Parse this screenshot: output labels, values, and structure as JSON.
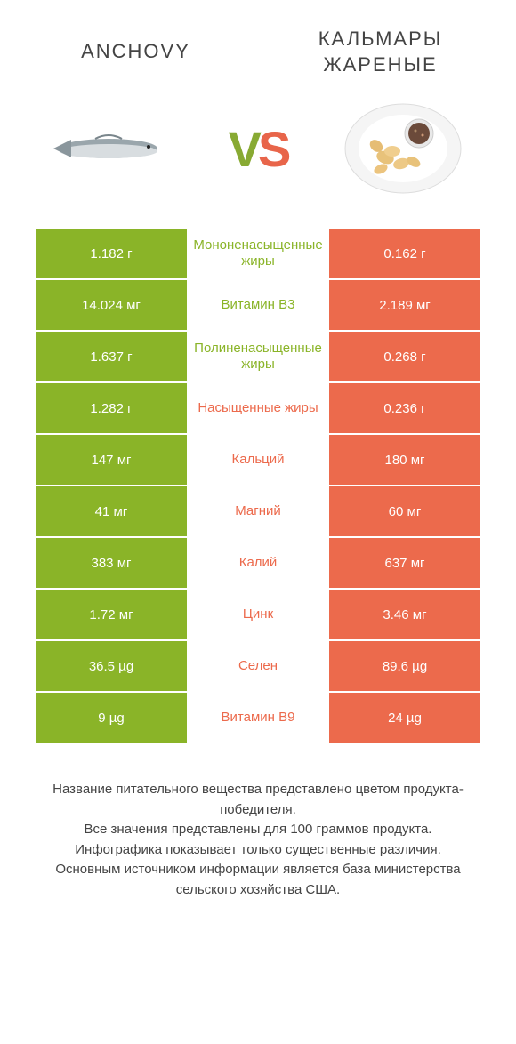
{
  "header": {
    "left_title": "ANCHOVY",
    "right_title": "КАЛЬМАРЫ ЖАРЕНЫЕ",
    "vs_v": "V",
    "vs_s": "S"
  },
  "colors": {
    "green": "#8ab428",
    "orange": "#ec6a4c",
    "bg": "#ffffff",
    "text": "#444444"
  },
  "rows": [
    {
      "left": "1.182 г",
      "mid": "Мононенасыщенные жиры",
      "right": "0.162 г",
      "winner": "left"
    },
    {
      "left": "14.024 мг",
      "mid": "Витамин B3",
      "right": "2.189 мг",
      "winner": "left"
    },
    {
      "left": "1.637 г",
      "mid": "Полиненасыщенные жиры",
      "right": "0.268 г",
      "winner": "left"
    },
    {
      "left": "1.282 г",
      "mid": "Насыщенные жиры",
      "right": "0.236 г",
      "winner": "right"
    },
    {
      "left": "147 мг",
      "mid": "Кальций",
      "right": "180 мг",
      "winner": "right"
    },
    {
      "left": "41 мг",
      "mid": "Магний",
      "right": "60 мг",
      "winner": "right"
    },
    {
      "left": "383 мг",
      "mid": "Калий",
      "right": "637 мг",
      "winner": "right"
    },
    {
      "left": "1.72 мг",
      "mid": "Цинк",
      "right": "3.46 мг",
      "winner": "right"
    },
    {
      "left": "36.5 µg",
      "mid": "Селен",
      "right": "89.6 µg",
      "winner": "right"
    },
    {
      "left": "9 µg",
      "mid": "Витамин B9",
      "right": "24 µg",
      "winner": "right"
    }
  ],
  "footer": {
    "line1": "Название питательного вещества представлено цветом продукта-победителя.",
    "line2": "Все значения представлены для 100 граммов продукта.",
    "line3": "Инфографика показывает только существенные различия.",
    "line4": "Основным источником информации является база министерства сельского хозяйства США."
  },
  "images": {
    "left_alt": "anchovy-fish",
    "right_alt": "fried-calamari-plate"
  }
}
